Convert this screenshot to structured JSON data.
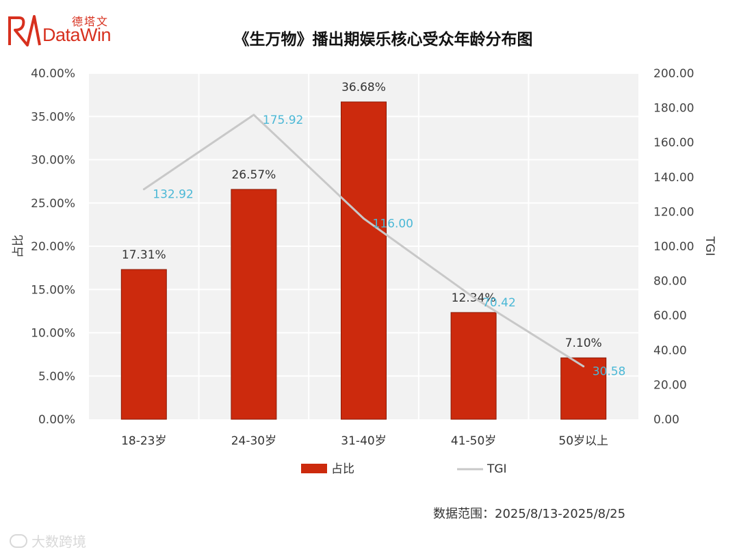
{
  "brand": {
    "cn": "德塔文",
    "en": "DataWin"
  },
  "footnote": "数据范围：2025/8/13-2025/8/25",
  "watermark": "大数跨境",
  "colors": {
    "bar": "#cc2a0d",
    "line": "#c8c8c8",
    "line_label": "#4bb8d6",
    "plot_bg": "#f2f2f2"
  },
  "chart_data": {
    "type": "bar",
    "title": "《生万物》播出期娱乐核心受众年龄分布图",
    "categories": [
      "18-23岁",
      "24-30岁",
      "31-40岁",
      "41-50岁",
      "50岁以上"
    ],
    "ylabel": "占比",
    "y2label": "TGI",
    "ylim": [
      0,
      40
    ],
    "y2lim": [
      0,
      200
    ],
    "yticks": [
      "0.00%",
      "5.00%",
      "10.00%",
      "15.00%",
      "20.00%",
      "25.00%",
      "30.00%",
      "35.00%",
      "40.00%"
    ],
    "y2ticks": [
      "0.00",
      "20.00",
      "40.00",
      "60.00",
      "80.00",
      "100.00",
      "120.00",
      "140.00",
      "160.00",
      "180.00",
      "200.00"
    ],
    "grid": true,
    "legend": "bottom",
    "series": [
      {
        "name": "占比",
        "type": "bar",
        "axis": "left",
        "values": [
          17.31,
          26.57,
          36.68,
          12.34,
          7.1
        ],
        "labels": [
          "17.31%",
          "26.57%",
          "36.68%",
          "12.34%",
          "7.10%"
        ]
      },
      {
        "name": "TGI",
        "type": "line",
        "axis": "right",
        "values": [
          132.92,
          175.92,
          116.0,
          70.42,
          30.58
        ],
        "labels": [
          "132.92",
          "175.92",
          "116.00",
          "70.42",
          "30.58"
        ]
      }
    ]
  }
}
